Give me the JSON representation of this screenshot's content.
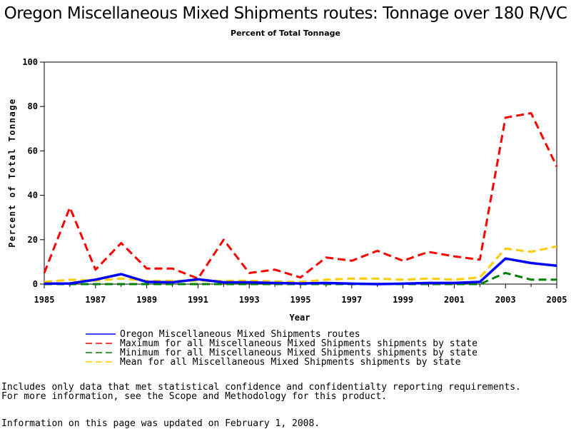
{
  "chart_data": {
    "type": "line",
    "title": "Oregon Miscellaneous Mixed Shipments routes: Tonnage over 180 R/VC",
    "subtitle": "Percent of Total Tonnage",
    "xlabel": "Year",
    "ylabel": "Percent of Total Tonnage",
    "xlim": [
      1985,
      2005
    ],
    "ylim": [
      0,
      100
    ],
    "x_ticks": [
      1985,
      1987,
      1989,
      1991,
      1993,
      1995,
      1997,
      1999,
      2001,
      2003,
      2005
    ],
    "y_ticks": [
      0,
      20,
      40,
      60,
      80,
      100
    ],
    "grid": false,
    "x": [
      1985,
      1986,
      1987,
      1988,
      1989,
      1990,
      1991,
      1992,
      1993,
      1994,
      1995,
      1996,
      1997,
      1998,
      1999,
      2000,
      2001,
      2002,
      2003,
      2004,
      2005
    ],
    "series": [
      {
        "name": "Oregon Miscellaneous Mixed Shipments routes",
        "color": "#0000ff",
        "style": "solid",
        "values": [
          0.2,
          0.3,
          2.0,
          4.5,
          1.0,
          0.8,
          2.2,
          0.8,
          0.8,
          0.5,
          0.3,
          0.5,
          0.2,
          0.0,
          0.2,
          0.5,
          0.5,
          1.0,
          11.5,
          9.5,
          8.3
        ]
      },
      {
        "name": "Maximum for all Miscellaneous Mixed Shipments shipments by state",
        "color": "#ff0000",
        "style": "dashed",
        "values": [
          5.0,
          34.5,
          6.5,
          18.5,
          7.0,
          7.0,
          2.5,
          20.0,
          5.0,
          6.5,
          3.0,
          12.0,
          10.5,
          15.0,
          10.5,
          14.5,
          12.5,
          11.0,
          75.0,
          77.0,
          53.0
        ]
      },
      {
        "name": "Minimum for all Miscellaneous Mixed Shipments shipments by state",
        "color": "#008000",
        "style": "dashed",
        "values": [
          0.0,
          0.0,
          0.0,
          0.0,
          0.0,
          0.0,
          0.0,
          0.0,
          0.0,
          0.0,
          0.0,
          0.0,
          0.0,
          0.0,
          0.0,
          0.0,
          0.0,
          0.0,
          5.0,
          2.0,
          2.0
        ]
      },
      {
        "name": "Mean for all Miscellaneous Mixed Shipments shipments by state",
        "color": "#ffcc00",
        "style": "dashed",
        "values": [
          1.0,
          2.0,
          1.5,
          2.5,
          1.5,
          1.5,
          1.5,
          1.5,
          1.5,
          1.2,
          1.0,
          2.0,
          2.5,
          2.5,
          2.0,
          2.5,
          2.0,
          3.0,
          16.0,
          14.5,
          17.0
        ]
      }
    ]
  },
  "footnotes": {
    "line1": "Includes only data that met statistical confidence and confidentialty reporting requirements.",
    "line2": "For more information, see the Scope and Methodology for this product.",
    "line3": "Information on this page was updated on February 1, 2008."
  }
}
